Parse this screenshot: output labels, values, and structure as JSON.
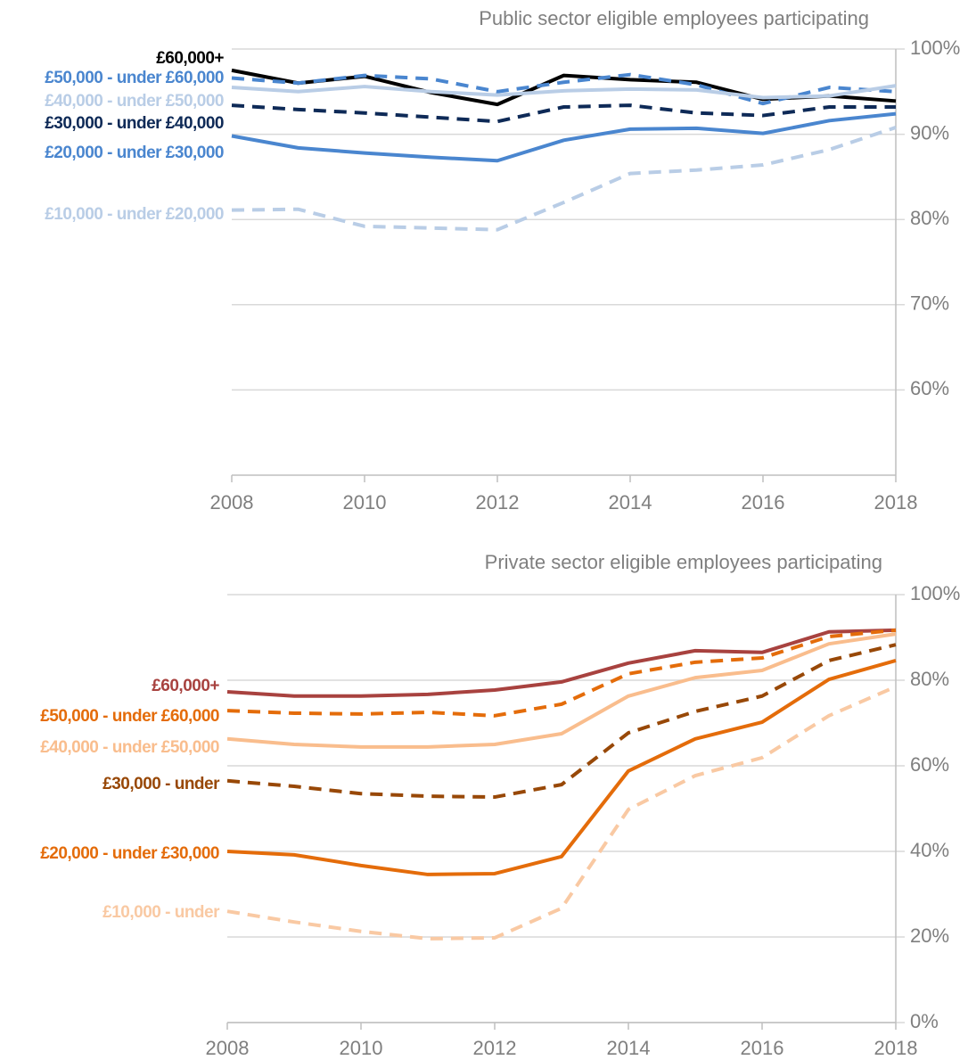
{
  "chart_data": [
    {
      "type": "line",
      "title": "Public sector eligible employees participating",
      "x": [
        2008,
        2009,
        2010,
        2011,
        2012,
        2013,
        2014,
        2015,
        2016,
        2017,
        2018
      ],
      "xlim": [
        2008,
        2018
      ],
      "xticks": [
        2008,
        2010,
        2012,
        2014,
        2016,
        2018
      ],
      "ylim": [
        50,
        100
      ],
      "yticks": [
        {
          "value": 60,
          "label": "60%"
        },
        {
          "value": 70,
          "label": "70%"
        },
        {
          "value": 80,
          "label": "80%"
        },
        {
          "value": 90,
          "label": "90%"
        },
        {
          "value": 100,
          "label": "100%"
        }
      ],
      "grid": true,
      "series": [
        {
          "name": "£60,000+",
          "color": "#000000",
          "dashed": false,
          "values": [
            97.5,
            96.0,
            96.8,
            94.9,
            93.5,
            96.9,
            96.4,
            96.1,
            94.1,
            94.5,
            93.9
          ]
        },
        {
          "name": "£50,000 - under £60,000",
          "color": "#4a86cf",
          "dashed": true,
          "values": [
            96.6,
            96.0,
            96.9,
            96.5,
            95.0,
            96.1,
            97.0,
            95.8,
            93.6,
            95.5,
            95.0
          ]
        },
        {
          "name": "£40,000 - under £50,000",
          "color": "#b9cde6",
          "dashed": false,
          "values": [
            95.5,
            95.0,
            95.6,
            95.0,
            94.6,
            95.1,
            95.3,
            95.2,
            94.3,
            94.5,
            95.7
          ]
        },
        {
          "name": "£30,000 - under £40,000",
          "color": "#0e2a57",
          "dashed": true,
          "values": [
            93.4,
            92.9,
            92.5,
            92.0,
            91.5,
            93.2,
            93.4,
            92.5,
            92.2,
            93.2,
            93.2
          ]
        },
        {
          "name": "£20,000 - under £30,000",
          "color": "#4a86cf",
          "dashed": false,
          "values": [
            89.8,
            88.4,
            87.8,
            87.3,
            86.9,
            89.3,
            90.6,
            90.7,
            90.1,
            91.6,
            92.4
          ]
        },
        {
          "name": "£10,000 - under £20,000",
          "color": "#b9cde6",
          "dashed": true,
          "values": [
            81.1,
            81.2,
            79.2,
            79.0,
            78.8,
            82.0,
            85.4,
            85.8,
            86.4,
            88.2,
            90.8
          ]
        }
      ]
    },
    {
      "type": "line",
      "title": "Private sector eligible employees participating",
      "x": [
        2008,
        2009,
        2010,
        2011,
        2012,
        2013,
        2014,
        2015,
        2016,
        2017,
        2018
      ],
      "xlim": [
        2008,
        2018
      ],
      "xticks": [
        2008,
        2010,
        2012,
        2014,
        2016,
        2018
      ],
      "ylim": [
        0,
        100
      ],
      "yticks": [
        {
          "value": 0,
          "label": "0%"
        },
        {
          "value": 20,
          "label": "20%"
        },
        {
          "value": 40,
          "label": "40%"
        },
        {
          "value": 60,
          "label": "60%"
        },
        {
          "value": 80,
          "label": "80%"
        },
        {
          "value": 100,
          "label": "100%"
        }
      ],
      "grid": true,
      "series": [
        {
          "name": "£60,000+",
          "color": "#a8423f",
          "dashed": false,
          "values": [
            77.3,
            76.3,
            76.3,
            76.7,
            77.7,
            79.6,
            84.0,
            86.9,
            86.5,
            91.3,
            91.7
          ]
        },
        {
          "name": "£50,000 - under £60,000",
          "color": "#e46c0a",
          "dashed": true,
          "values": [
            72.9,
            72.3,
            72.1,
            72.5,
            71.7,
            74.4,
            81.5,
            84.2,
            85.2,
            90.2,
            91.7
          ]
        },
        {
          "name": "£40,000 - under £50,000",
          "color": "#f9bd8d",
          "dashed": false,
          "values": [
            66.3,
            65.0,
            64.4,
            64.4,
            65.0,
            67.5,
            76.3,
            80.6,
            82.3,
            88.5,
            90.8
          ]
        },
        {
          "name": "£30,000 - under",
          "color": "#984807",
          "dashed": true,
          "values": [
            56.5,
            55.2,
            53.5,
            52.9,
            52.7,
            55.6,
            67.7,
            72.7,
            76.3,
            84.6,
            88.3
          ]
        },
        {
          "name": "£20,000 - under £30,000",
          "color": "#e46c0a",
          "dashed": false,
          "values": [
            40.0,
            39.2,
            36.7,
            34.6,
            34.8,
            38.8,
            58.8,
            66.3,
            70.2,
            80.2,
            84.6
          ]
        },
        {
          "name": "£10,000 - under",
          "color": "#f9c9a3",
          "dashed": true,
          "values": [
            26.0,
            23.5,
            21.3,
            19.6,
            19.8,
            26.7,
            49.8,
            57.7,
            61.9,
            71.7,
            78.5
          ]
        }
      ]
    }
  ]
}
